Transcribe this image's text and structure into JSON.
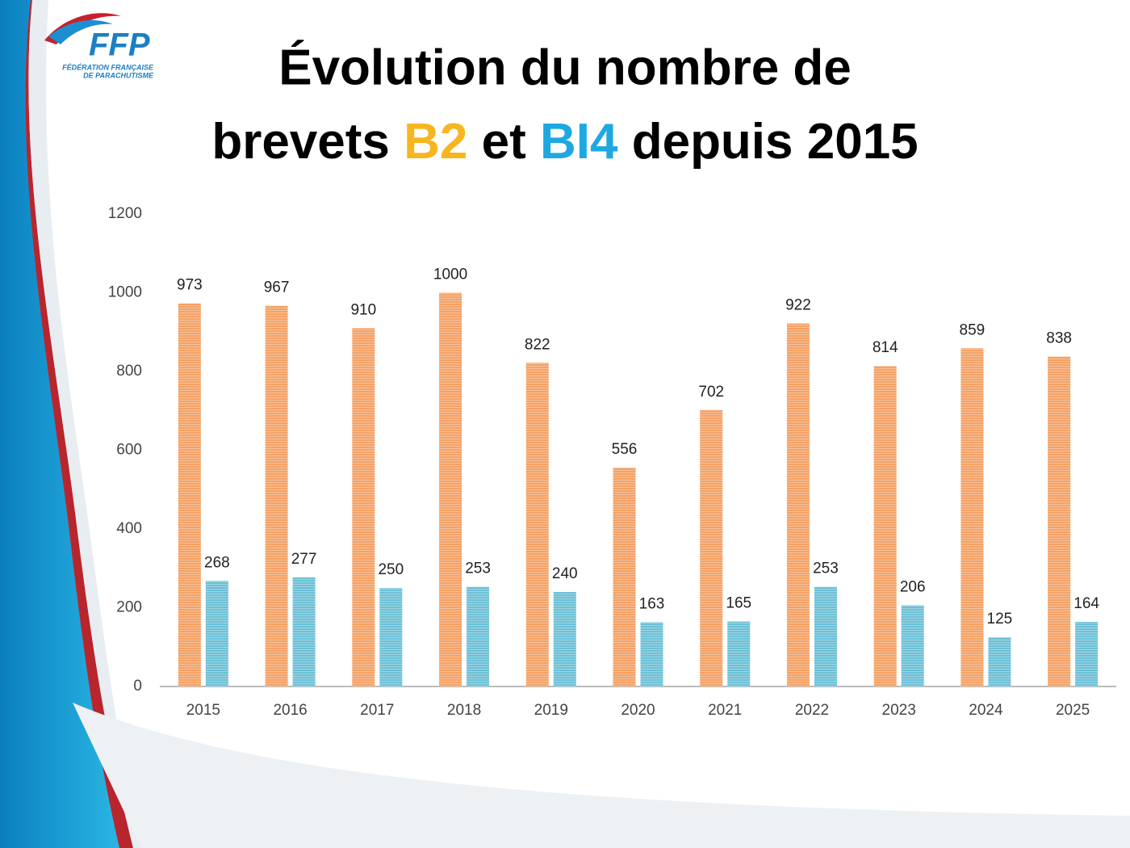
{
  "logo": {
    "mark": "FFP",
    "subtitle_lines": [
      "FÉDÉRATION FRANÇAISE",
      "DE PARACHUTISME"
    ]
  },
  "chart_data": {
    "type": "bar",
    "title_lines": [
      "Évolution du nombre de",
      "brevets B2 et BI4 depuis 2015"
    ],
    "categories": [
      "2015",
      "2016",
      "2017",
      "2018",
      "2019",
      "2020",
      "2021",
      "2022",
      "2023",
      "2024",
      "2025"
    ],
    "series": [
      {
        "name": "B2",
        "color": "#f4a165",
        "title_color": "#f7b51e",
        "values": [
          973,
          967,
          910,
          1000,
          822,
          556,
          702,
          922,
          814,
          859,
          838
        ]
      },
      {
        "name": "BI4",
        "color": "#6cc0d6",
        "title_color": "#1da8e2",
        "values": [
          268,
          277,
          250,
          253,
          240,
          163,
          165,
          253,
          206,
          125,
          164
        ]
      }
    ],
    "ylim": [
      0,
      1200
    ],
    "yticks": [
      0,
      200,
      400,
      600,
      800,
      1000,
      1200
    ],
    "grid": false,
    "data_labels": true
  }
}
